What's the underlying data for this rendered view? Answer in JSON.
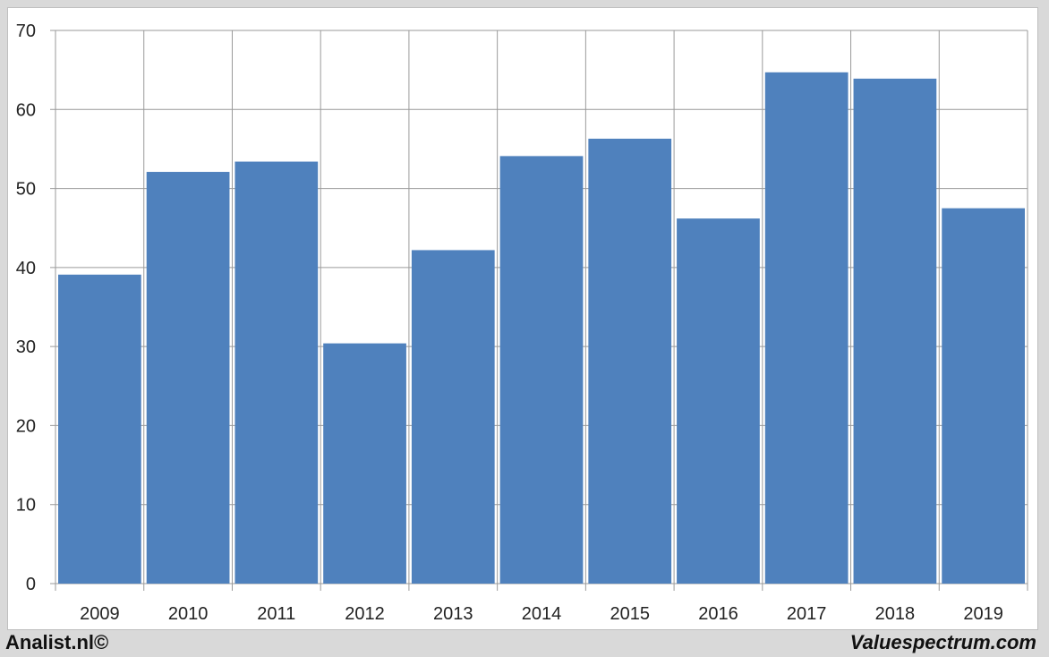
{
  "footer": {
    "left": "Analist.nl©",
    "right": "Valuespectrum.com"
  },
  "colors": {
    "bar": "#4f81bd",
    "grid": "#9a9a9a",
    "background": "#ffffff",
    "page": "#d9d9d9"
  },
  "chart_data": {
    "type": "bar",
    "categories": [
      "2009",
      "2010",
      "2011",
      "2012",
      "2013",
      "2014",
      "2015",
      "2016",
      "2017",
      "2018",
      "2019"
    ],
    "values": [
      39.1,
      52.1,
      53.4,
      30.4,
      42.2,
      54.1,
      56.3,
      46.2,
      64.7,
      63.9,
      47.5
    ],
    "ylim": [
      0,
      70
    ],
    "yticks": [
      0,
      10,
      20,
      30,
      40,
      50,
      60,
      70
    ],
    "grid": true,
    "title": "",
    "xlabel": "",
    "ylabel": ""
  }
}
